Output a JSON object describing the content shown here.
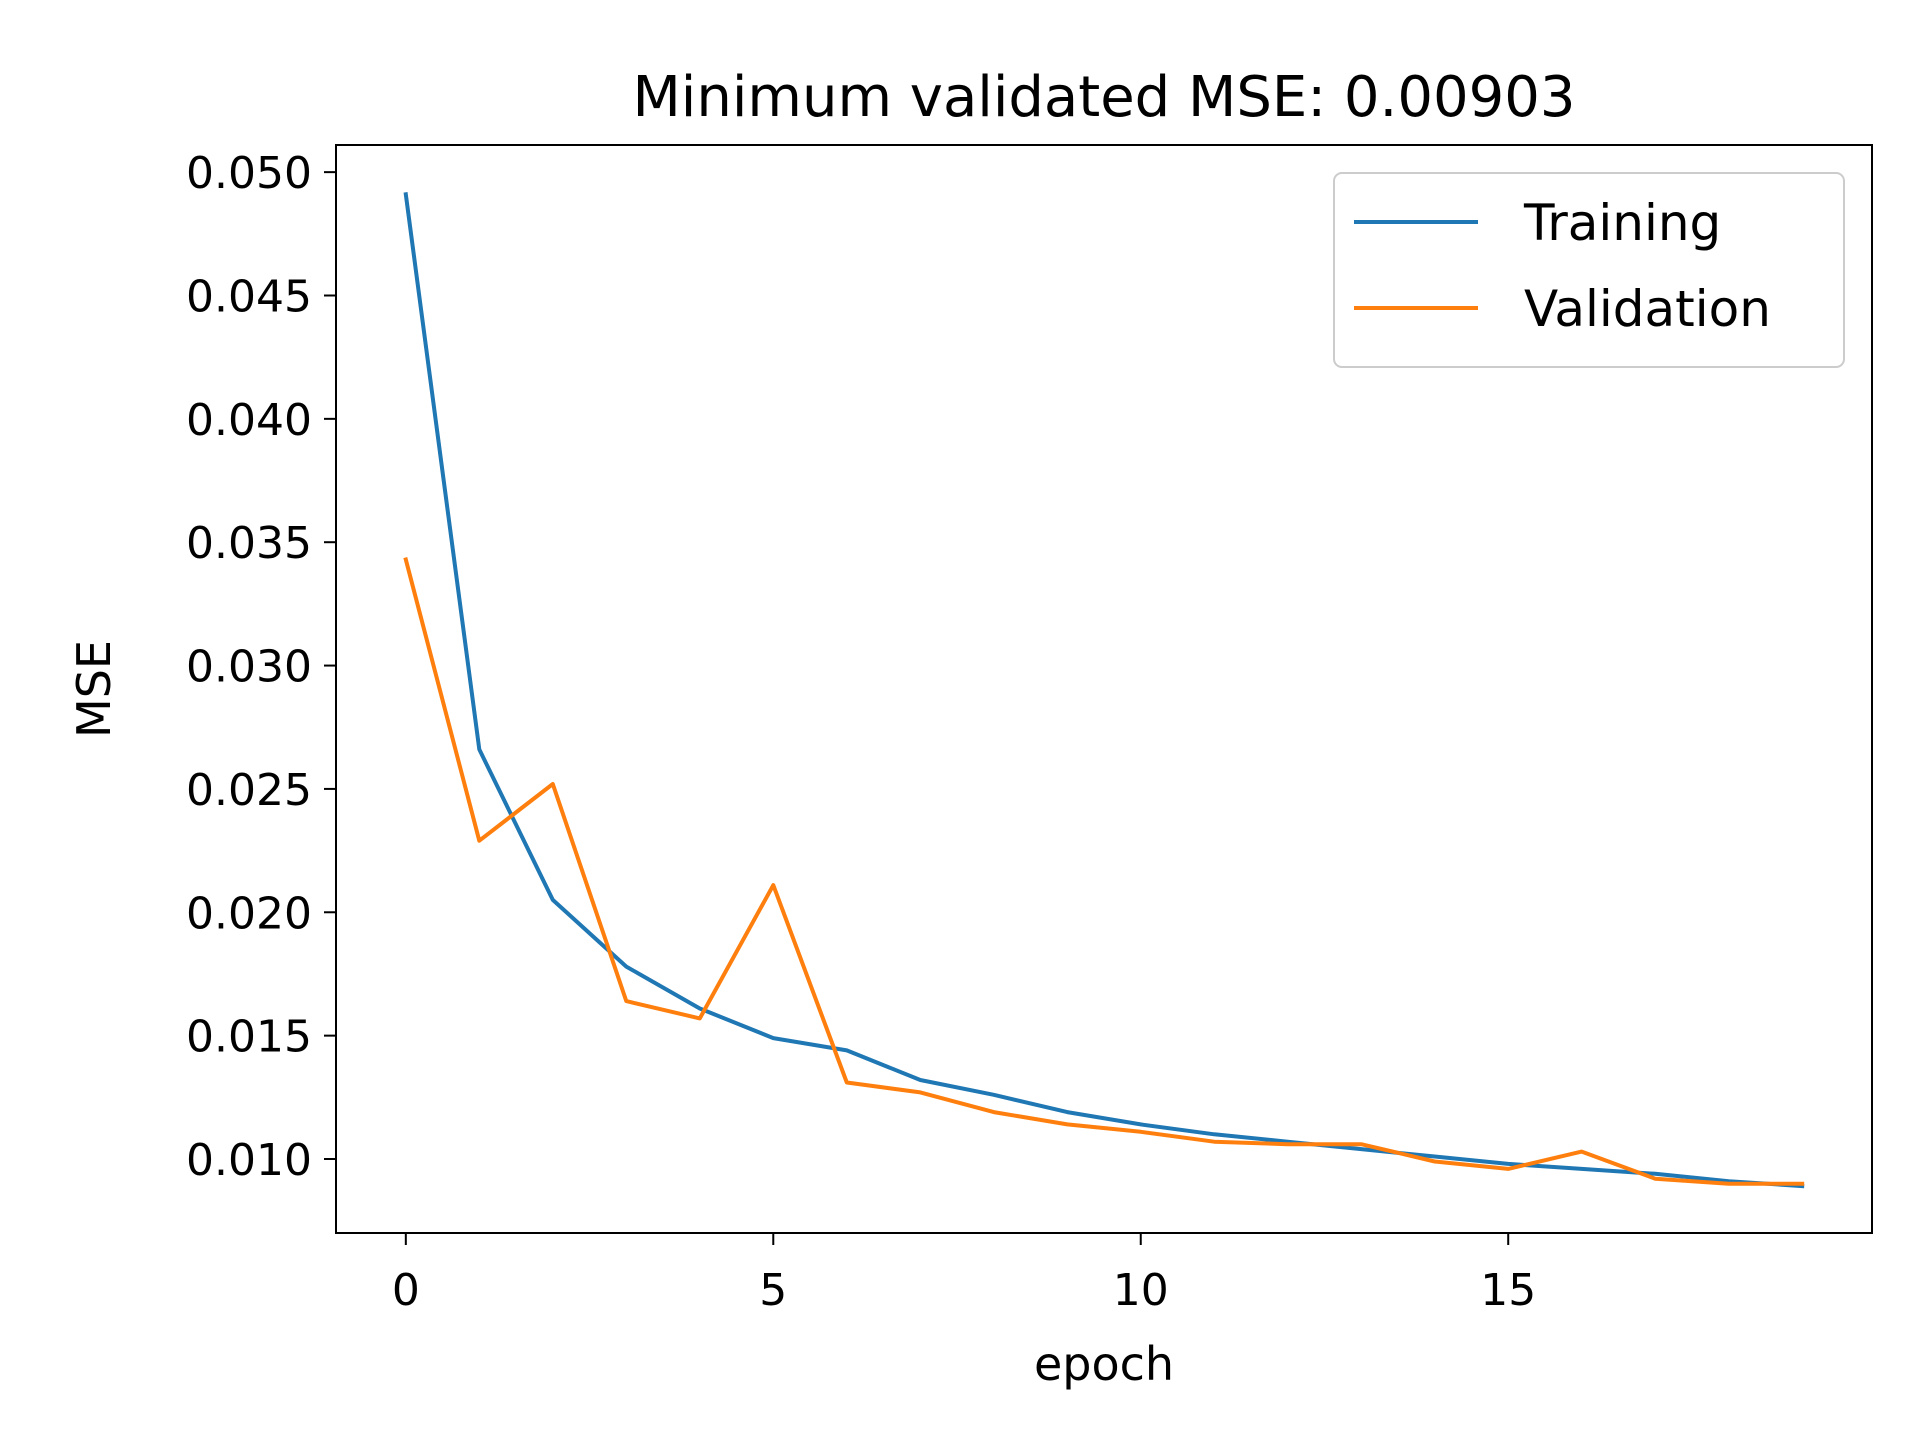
{
  "chart_data": {
    "type": "line",
    "title": "Minimum validated MSE: 0.00903",
    "xlabel": "epoch",
    "ylabel": "MSE",
    "xlim": [
      -0.95,
      19.95
    ],
    "ylim": [
      0.007,
      0.0511
    ],
    "xticks": [
      0,
      5,
      10,
      15
    ],
    "xtick_labels": [
      "0",
      "5",
      "10",
      "15"
    ],
    "yticks": [
      0.01,
      0.015,
      0.02,
      0.025,
      0.03,
      0.035,
      0.04,
      0.045,
      0.05
    ],
    "ytick_labels": [
      "0.010",
      "0.015",
      "0.020",
      "0.025",
      "0.030",
      "0.035",
      "0.040",
      "0.045",
      "0.050"
    ],
    "grid": false,
    "legend_position": "top-right",
    "x": [
      0,
      1,
      2,
      3,
      4,
      5,
      6,
      7,
      8,
      9,
      10,
      11,
      12,
      13,
      14,
      15,
      16,
      17,
      18,
      19
    ],
    "series": [
      {
        "name": "Training",
        "color": "#1f77b4",
        "values": [
          0.0491,
          0.0266,
          0.0205,
          0.0178,
          0.0161,
          0.0149,
          0.0144,
          0.0132,
          0.0126,
          0.0119,
          0.0114,
          0.011,
          0.0107,
          0.0104,
          0.0101,
          0.0098,
          0.0096,
          0.0094,
          0.0091,
          0.0089
        ]
      },
      {
        "name": "Validation",
        "color": "#ff7f0e",
        "values": [
          0.0343,
          0.0229,
          0.0252,
          0.0164,
          0.0157,
          0.0211,
          0.0131,
          0.0127,
          0.0119,
          0.0114,
          0.0111,
          0.0107,
          0.0106,
          0.0106,
          0.0099,
          0.0096,
          0.0103,
          0.0092,
          0.009,
          0.009
        ]
      }
    ]
  }
}
